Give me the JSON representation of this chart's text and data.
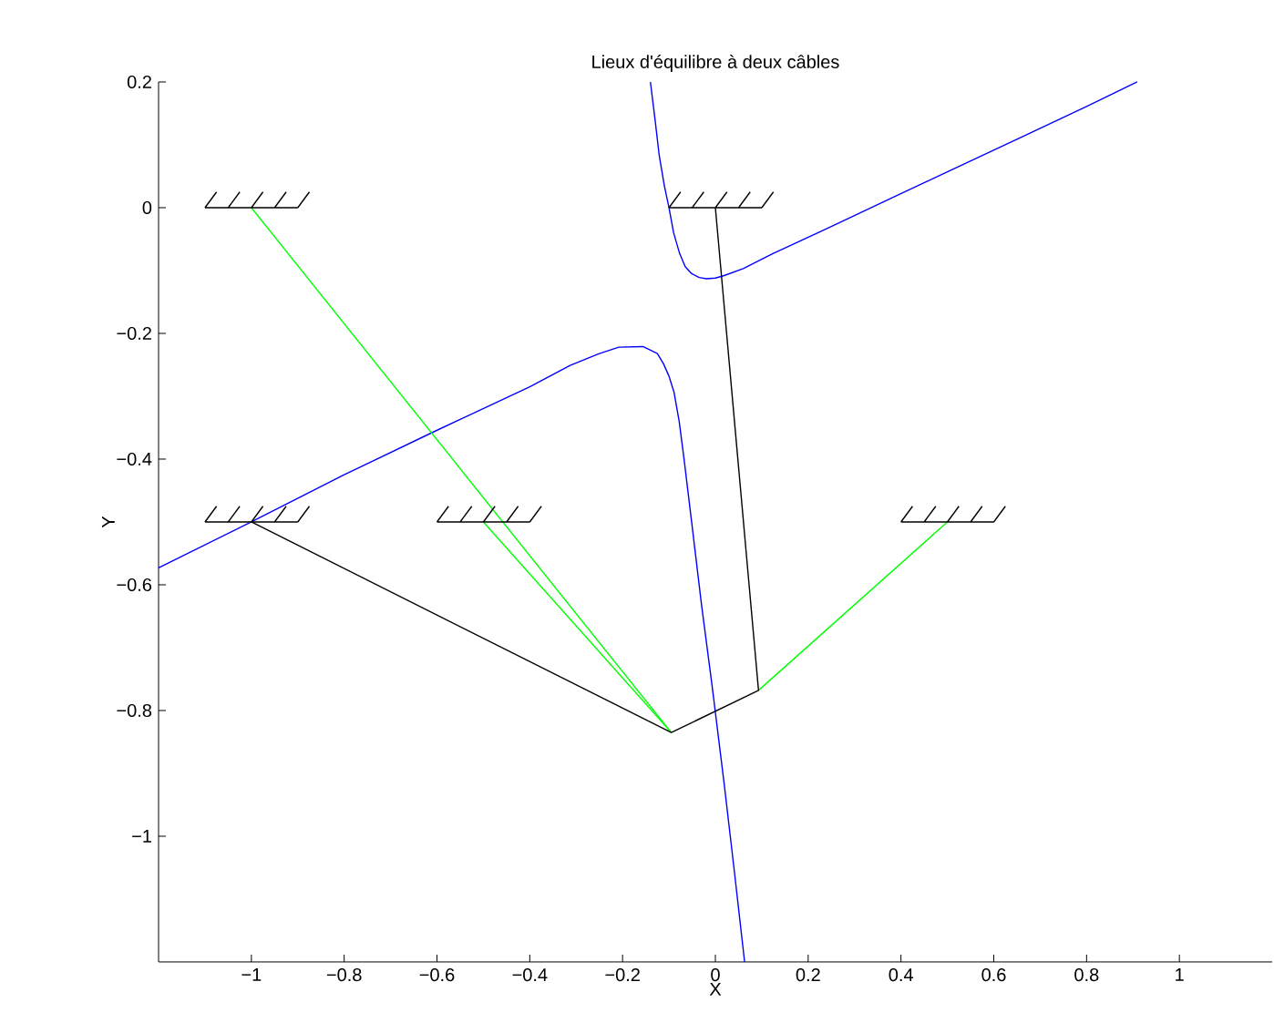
{
  "chart_data": {
    "type": "line",
    "title": "Lieux d'équilibre à deux câbles",
    "xlabel": "X",
    "ylabel": "Y",
    "marker": "none",
    "line_style": "solid",
    "xlim": [
      -1.2,
      1.2
    ],
    "ylim": [
      -1.2,
      0.2
    ],
    "xticks": [
      {
        "value": -1,
        "label": "−1"
      },
      {
        "value": -0.8,
        "label": "−0.8"
      },
      {
        "value": -0.6,
        "label": "−0.6"
      },
      {
        "value": -0.4,
        "label": "−0.4"
      },
      {
        "value": -0.2,
        "label": "−0.2"
      },
      0,
      0.2,
      0.4,
      0.6,
      0.8,
      1
    ],
    "yticks": [
      {
        "value": -1,
        "label": "−1"
      },
      {
        "value": -0.8,
        "label": "−0.8"
      },
      {
        "value": -0.6,
        "label": "−0.6"
      },
      {
        "value": -0.4,
        "label": "−0.4"
      },
      {
        "value": -0.2,
        "label": "−0.2"
      },
      0,
      0.2
    ],
    "series": [
      {
        "color": "#0000ff",
        "x": [
          -1.2,
          -1.0,
          -0.8,
          -0.611,
          -0.4,
          -0.313,
          -0.25,
          -0.208,
          -0.156,
          -0.125,
          -0.112,
          -0.1,
          -0.089,
          -0.078,
          -0.068,
          -0.051,
          -0.03,
          -0.007,
          0.019,
          0.04,
          0.063
        ],
        "values": [
          -0.573,
          -0.5,
          -0.425,
          -0.358,
          -0.285,
          -0.251,
          -0.232,
          -0.222,
          -0.221,
          -0.232,
          -0.248,
          -0.268,
          -0.294,
          -0.34,
          -0.397,
          -0.501,
          -0.631,
          -0.761,
          -0.917,
          -1.05,
          -1.2
        ]
      },
      {
        "color": "#0000ff",
        "x": [
          -0.14,
          -0.13,
          -0.121,
          -0.11,
          -0.1,
          -0.09,
          -0.077,
          -0.065,
          -0.051,
          -0.035,
          -0.019,
          0,
          0.019,
          0.06,
          0.124,
          0.25,
          0.387,
          0.5,
          0.65,
          0.8,
          0.909
        ],
        "values": [
          0.2,
          0.14,
          0.083,
          0.035,
          0,
          -0.04,
          -0.073,
          -0.094,
          -0.105,
          -0.111,
          -0.113,
          -0.112,
          -0.108,
          -0.097,
          -0.073,
          -0.03,
          0.018,
          0.057,
          0.109,
          0.161,
          0.2
        ]
      },
      {
        "color": "#00ff00",
        "x": [
          -1,
          -0.095
        ],
        "values": [
          0,
          -0.835
        ]
      },
      {
        "color": "#00ff00",
        "x": [
          -0.5,
          -0.095
        ],
        "values": [
          -0.5,
          -0.835
        ]
      },
      {
        "color": "#00ff00",
        "x": [
          0.5,
          0.093
        ],
        "values": [
          -0.5,
          -0.768
        ]
      },
      {
        "color": "#000000",
        "x": [
          -1,
          -0.095,
          0.093,
          0
        ],
        "values": [
          -0.5,
          -0.835,
          -0.768,
          0
        ]
      },
      {
        "color": "#000000",
        "x": [
          -1.1,
          -0.9,
          null,
          -1.1,
          -1.075,
          null,
          -1.05,
          -1.025,
          null,
          -1,
          -0.975,
          null,
          -0.95,
          -0.925,
          null,
          -0.9,
          -0.875
        ],
        "values": [
          0,
          0,
          null,
          0,
          0.025,
          null,
          0,
          0.025,
          null,
          0,
          0.025,
          null,
          0,
          0.025,
          null,
          0,
          0.025
        ]
      },
      {
        "color": "#000000",
        "x": [
          -1.1,
          -0.9,
          null,
          -1.1,
          -1.075,
          null,
          -1.05,
          -1.025,
          null,
          -1,
          -0.975,
          null,
          -0.95,
          -0.925,
          null,
          -0.9,
          -0.875
        ],
        "values": [
          -0.5,
          -0.5,
          null,
          -0.5,
          -0.475,
          null,
          -0.5,
          -0.475,
          null,
          -0.5,
          -0.475,
          null,
          -0.5,
          -0.475,
          null,
          -0.5,
          -0.475
        ]
      },
      {
        "color": "#000000",
        "x": [
          -0.6,
          -0.4,
          null,
          -0.6,
          -0.575,
          null,
          -0.55,
          -0.525,
          null,
          -0.5,
          -0.475,
          null,
          -0.45,
          -0.425,
          null,
          -0.4,
          -0.375
        ],
        "values": [
          -0.5,
          -0.5,
          null,
          -0.5,
          -0.475,
          null,
          -0.5,
          -0.475,
          null,
          -0.5,
          -0.475,
          null,
          -0.5,
          -0.475,
          null,
          -0.5,
          -0.475
        ]
      },
      {
        "color": "#000000",
        "x": [
          -0.1,
          0.1,
          null,
          -0.1,
          -0.075,
          null,
          -0.05,
          -0.025,
          null,
          0,
          0.025,
          null,
          0.05,
          0.075,
          null,
          0.1,
          0.125
        ],
        "values": [
          0,
          0,
          null,
          0,
          0.025,
          null,
          0,
          0.025,
          null,
          0,
          0.025,
          null,
          0,
          0.025,
          null,
          0,
          0.025
        ]
      },
      {
        "color": "#000000",
        "x": [
          0.4,
          0.6,
          null,
          0.4,
          0.425,
          null,
          0.45,
          0.475,
          null,
          0.5,
          0.525,
          null,
          0.55,
          0.575,
          null,
          0.6,
          0.625
        ],
        "values": [
          -0.5,
          -0.5,
          null,
          -0.5,
          -0.475,
          null,
          -0.5,
          -0.475,
          null,
          -0.5,
          -0.475,
          null,
          -0.5,
          -0.475,
          null,
          -0.5,
          -0.475
        ]
      }
    ]
  }
}
